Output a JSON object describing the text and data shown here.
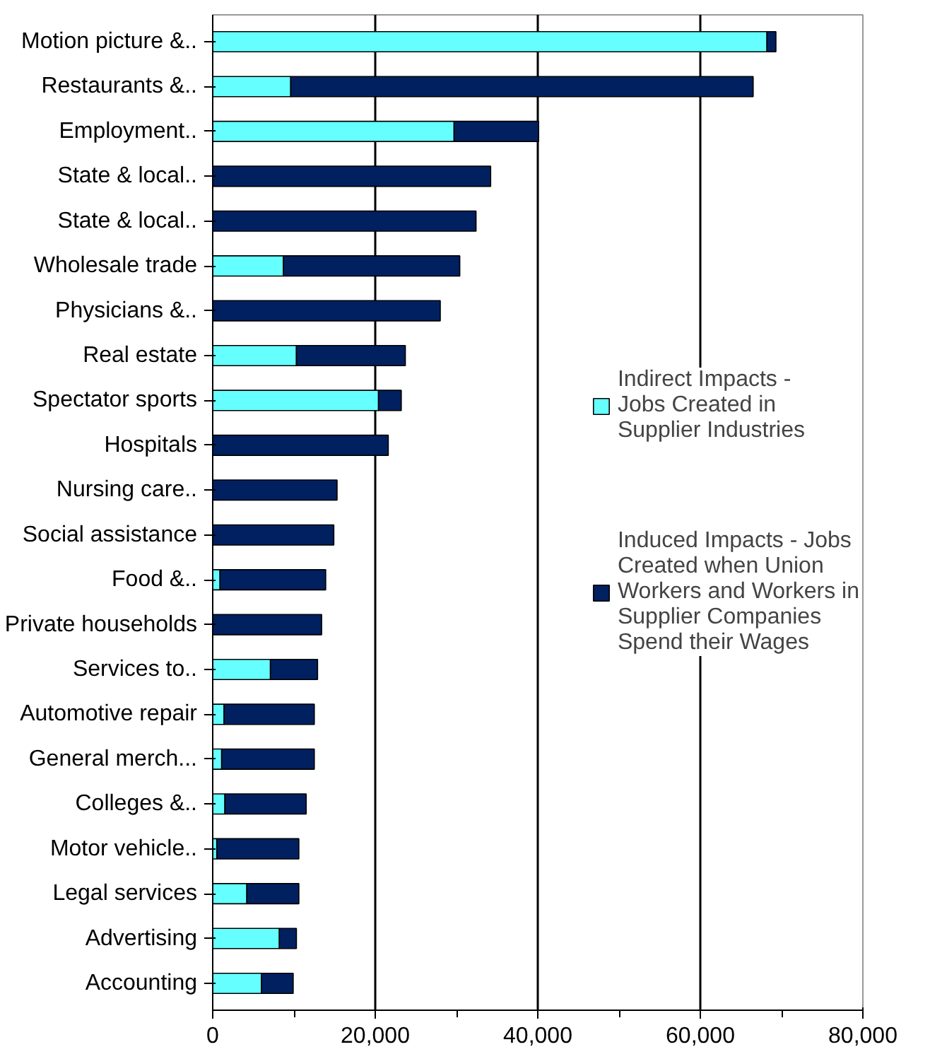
{
  "chart_data": {
    "type": "bar",
    "orientation": "horizontal",
    "stacked": true,
    "categories": [
      "Motion picture &..",
      "Restaurants &..",
      "Employment..",
      "State & local..",
      "State & local..",
      "Wholesale trade",
      "Physicians &..",
      "Real estate",
      "Spectator sports",
      "Hospitals",
      "Nursing care..",
      "Social assistance",
      "Food &..",
      "Private households",
      "Services to..",
      "Automotive repair",
      "General merch...",
      "Colleges &..",
      "Motor vehicle..",
      "Legal services",
      "Advertising",
      "Accounting"
    ],
    "series": [
      {
        "name": "Indirect Impacts - Jobs Created in Supplier Industries",
        "color": "#66ffff",
        "values": [
          68200,
          9600,
          29700,
          0,
          0,
          8700,
          0,
          10300,
          20400,
          0,
          0,
          0,
          900,
          0,
          7100,
          1400,
          1100,
          1500,
          500,
          4200,
          8200,
          6000
        ]
      },
      {
        "name": "Induced Impacts - Jobs Created when Union Workers and Workers in Supplier Companies Spend their Wages",
        "color": "#002060",
        "values": [
          1100,
          56900,
          10400,
          34200,
          32400,
          21700,
          28000,
          13400,
          2800,
          21600,
          15300,
          14900,
          13000,
          13400,
          5800,
          11100,
          11400,
          10000,
          10100,
          6400,
          2100,
          3900
        ]
      }
    ],
    "xlim": [
      0,
      80000
    ],
    "xticks": [
      {
        "value": 0,
        "label": "0"
      },
      {
        "value": 20000,
        "label": "20,000"
      },
      {
        "value": 40000,
        "label": "40,000"
      },
      {
        "value": 60000,
        "label": "60,000"
      },
      {
        "value": 80000,
        "label": "80,000"
      }
    ],
    "grid": "x",
    "legend": "right"
  }
}
